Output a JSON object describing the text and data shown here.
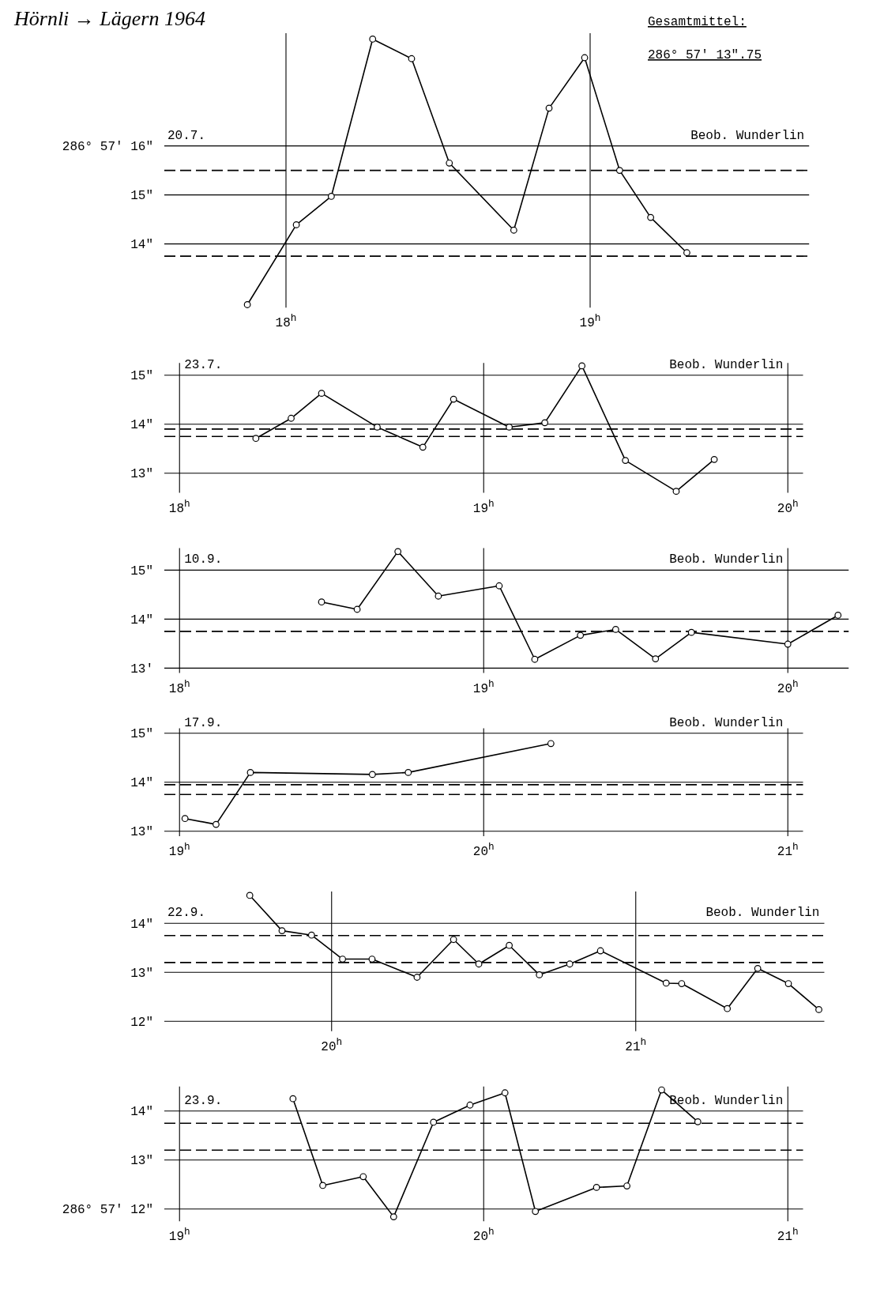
{
  "chart_data": [
    {
      "type": "line",
      "title": "20.7.",
      "annotations": [
        "Hörnli → Lägern   1964",
        "Gesamtmittel:",
        "286° 57' 13\".75",
        "Beob. Wunderlin"
      ],
      "xlim": [
        17.6,
        19.72
      ],
      "xticks": [
        {
          "value": 18,
          "label": "18$^{h}$"
        },
        {
          "value": 19,
          "label": "19$^{h}$"
        }
      ],
      "ylim": [
        12.7,
        18.3
      ],
      "yticks": [
        {
          "value": 14,
          "label": "14\""
        },
        {
          "value": 15,
          "label": "15\""
        },
        {
          "value": 16,
          "label": "286° 57' 16\""
        }
      ],
      "grid": true,
      "marker": "circle",
      "line_style": "solid",
      "x": [
        17.873,
        18.034,
        18.149,
        18.285,
        18.413,
        18.537,
        18.749,
        18.865,
        18.982,
        19.097,
        19.199,
        19.318
      ],
      "series": [
        {
          "color": "#000000",
          "values": [
            12.76,
            14.39,
            14.97,
            18.18,
            17.78,
            15.65,
            14.28,
            16.77,
            17.8,
            15.5,
            14.54,
            13.82
          ]
        }
      ],
      "ref_lines": [
        {
          "axis": "y",
          "value": 15.5,
          "line_style": "dashed"
        },
        {
          "axis": "y",
          "value": 13.75,
          "line_style": "dashed"
        }
      ]
    },
    {
      "type": "line",
      "title": "23.7.",
      "annotations": [
        "Beob. Wunderlin"
      ],
      "xlim": [
        17.95,
        20.05
      ],
      "xticks": [
        {
          "value": 18,
          "label": "18$^{h}$"
        },
        {
          "value": 19,
          "label": "19$^{h}$"
        },
        {
          "value": 20,
          "label": "20$^{h}$"
        }
      ],
      "ylim": [
        12.6,
        15.25
      ],
      "yticks": [
        {
          "value": 13,
          "label": "13\""
        },
        {
          "value": 14,
          "label": "14\""
        },
        {
          "value": 15,
          "label": "15\""
        }
      ],
      "grid": true,
      "marker": "circle",
      "line_style": "solid",
      "x": [
        18.251,
        18.367,
        18.467,
        18.65,
        18.8,
        18.901,
        19.084,
        19.201,
        19.323,
        19.466,
        19.633,
        19.758
      ],
      "series": [
        {
          "color": "#000000",
          "values": [
            13.71,
            14.12,
            14.63,
            13.94,
            13.53,
            14.51,
            13.94,
            14.03,
            15.19,
            13.26,
            12.63,
            13.28
          ]
        }
      ],
      "ref_lines": [
        {
          "axis": "y",
          "value": 13.9,
          "line_style": "dashed"
        },
        {
          "axis": "y",
          "value": 13.75,
          "line_style": "dashed"
        }
      ]
    },
    {
      "type": "line",
      "title": "10.9.",
      "annotations": [
        "Beob. Wunderlin"
      ],
      "xlim": [
        17.95,
        20.2
      ],
      "xticks": [
        {
          "value": 18,
          "label": "18$^{h}$"
        },
        {
          "value": 19,
          "label": "19$^{h}$"
        },
        {
          "value": 20,
          "label": "20$^{h}$"
        }
      ],
      "ylim": [
        12.9,
        15.45
      ],
      "yticks": [
        {
          "value": 13,
          "label": "13'"
        },
        {
          "value": 14,
          "label": "14\""
        },
        {
          "value": 15,
          "label": "15\""
        }
      ],
      "grid": true,
      "marker": "circle",
      "line_style": "solid",
      "x": [
        18.467,
        18.584,
        18.718,
        18.851,
        19.051,
        19.168,
        19.318,
        19.434,
        19.565,
        19.683,
        20.0,
        20.165
      ],
      "series": [
        {
          "color": "#000000",
          "values": [
            14.35,
            14.2,
            15.38,
            14.47,
            14.68,
            13.18,
            13.67,
            13.79,
            13.19,
            13.73,
            13.49,
            14.08
          ]
        }
      ],
      "ref_lines": [
        {
          "axis": "y",
          "value": 13.75,
          "line_style": "dashed"
        }
      ]
    },
    {
      "type": "line",
      "title": "17.9.",
      "annotations": [
        "Beob. Wunderlin"
      ],
      "xlim": [
        18.95,
        21.05
      ],
      "xticks": [
        {
          "value": 19,
          "label": "19$^{h}$"
        },
        {
          "value": 20,
          "label": "20$^{h}$"
        },
        {
          "value": 21,
          "label": "21$^{h}$"
        }
      ],
      "ylim": [
        12.9,
        15.1
      ],
      "yticks": [
        {
          "value": 13,
          "label": "13\""
        },
        {
          "value": 14,
          "label": "14\""
        },
        {
          "value": 15,
          "label": "15\""
        }
      ],
      "grid": true,
      "marker": "circle",
      "line_style": "solid",
      "x": [
        19.018,
        19.12,
        19.233,
        19.634,
        19.752,
        20.221
      ],
      "series": [
        {
          "color": "#000000",
          "values": [
            13.26,
            13.14,
            14.2,
            14.16,
            14.2,
            14.79
          ]
        }
      ],
      "ref_lines": [
        {
          "axis": "y",
          "value": 13.95,
          "line_style": "dashed"
        },
        {
          "axis": "y",
          "value": 13.75,
          "line_style": "dashed"
        }
      ]
    },
    {
      "type": "line",
      "title": "22.9.",
      "annotations": [
        "Beob. Wunderlin"
      ],
      "xlim": [
        19.45,
        21.62
      ],
      "xticks": [
        {
          "value": 20,
          "label": "20$^{h}$"
        },
        {
          "value": 21,
          "label": "21$^{h}$"
        }
      ],
      "ylim": [
        11.8,
        14.65
      ],
      "yticks": [
        {
          "value": 12,
          "label": "12\""
        },
        {
          "value": 13,
          "label": "13\""
        },
        {
          "value": 14,
          "label": "14\""
        }
      ],
      "grid": true,
      "marker": "circle",
      "line_style": "solid",
      "x": [
        19.731,
        19.837,
        19.934,
        20.036,
        20.133,
        20.281,
        20.401,
        20.484,
        20.584,
        20.683,
        20.783,
        20.884,
        21.1,
        21.151,
        21.301,
        21.401,
        21.502,
        21.602
      ],
      "series": [
        {
          "color": "#000000",
          "values": [
            14.57,
            13.85,
            13.76,
            13.27,
            13.27,
            12.9,
            13.67,
            13.17,
            13.55,
            12.95,
            13.17,
            13.44,
            12.78,
            12.77,
            12.26,
            13.08,
            12.77,
            12.24
          ]
        }
      ],
      "ref_lines": [
        {
          "axis": "y",
          "value": 13.75,
          "line_style": "dashed"
        },
        {
          "axis": "y",
          "value": 13.2,
          "line_style": "dashed"
        }
      ]
    },
    {
      "type": "line",
      "title": "23.9.",
      "annotations": [
        "Beob. Wunderlin"
      ],
      "xlim": [
        18.95,
        21.05
      ],
      "xticks": [
        {
          "value": 19,
          "label": "19$^{h}$"
        },
        {
          "value": 20,
          "label": "20$^{h}$"
        },
        {
          "value": 21,
          "label": "21$^{h}$"
        }
      ],
      "ylim": [
        11.75,
        14.5
      ],
      "yticks": [
        {
          "value": 12,
          "label": "286° 57' 12\""
        },
        {
          "value": 13,
          "label": "13\""
        },
        {
          "value": 14,
          "label": "14\""
        }
      ],
      "grid": true,
      "marker": "circle",
      "line_style": "solid",
      "x": [
        19.373,
        19.471,
        19.604,
        19.704,
        19.835,
        19.955,
        20.07,
        20.17,
        20.371,
        20.471,
        20.585,
        20.704
      ],
      "series": [
        {
          "color": "#000000",
          "values": [
            14.25,
            12.48,
            12.66,
            11.84,
            13.77,
            14.12,
            14.37,
            11.95,
            12.44,
            12.47,
            14.43,
            13.78
          ]
        }
      ],
      "ref_lines": [
        {
          "axis": "y",
          "value": 13.75,
          "line_style": "dashed"
        },
        {
          "axis": "y",
          "value": 13.2,
          "line_style": "dashed"
        }
      ]
    }
  ]
}
